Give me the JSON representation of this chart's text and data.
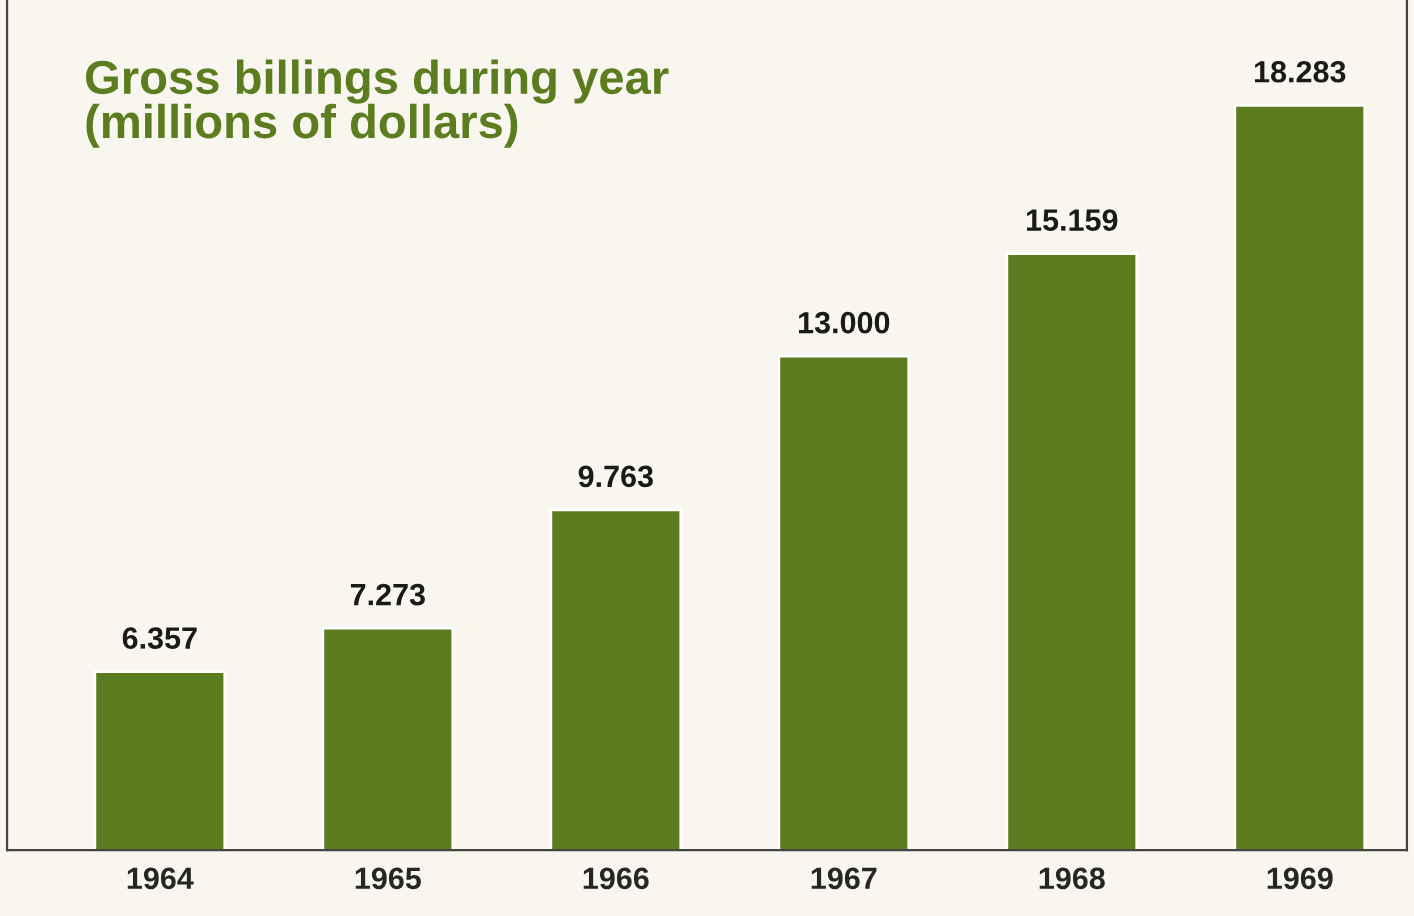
{
  "chart_data": {
    "type": "bar",
    "title": "Gross billings during year\n(millions of dollars)",
    "categories": [
      "1964",
      "1965",
      "1966",
      "1967",
      "1968",
      "1969"
    ],
    "values": [
      6.357,
      7.273,
      9.763,
      13.0,
      15.159,
      18.283
    ],
    "value_labels": [
      "6.357",
      "7.273",
      "9.763",
      "13.000",
      "15.159",
      "18.283"
    ],
    "color": "#5b7d1f",
    "ylim": [
      2.6,
      20.5
    ],
    "tick_labels": "x",
    "grid": false,
    "legend": false
  }
}
